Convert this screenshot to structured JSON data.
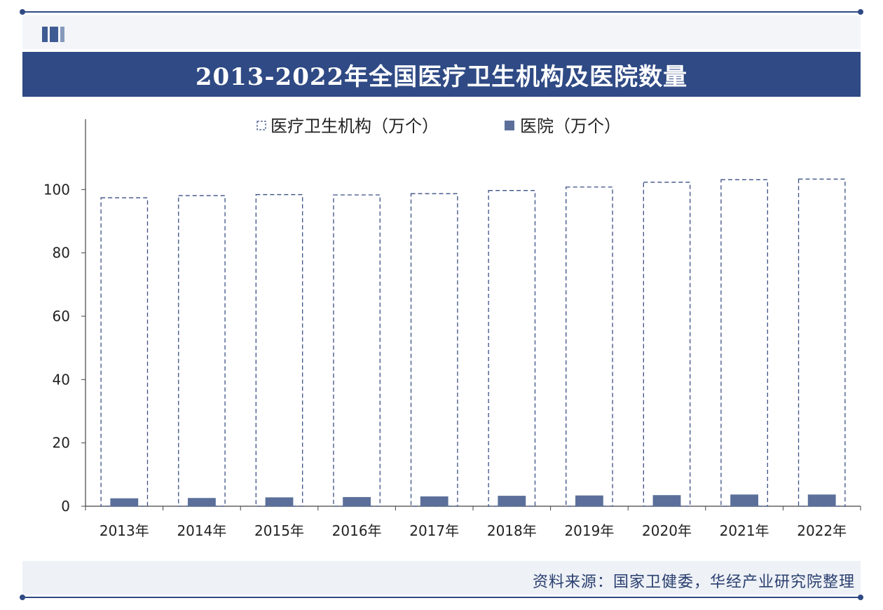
{
  "header": {
    "title": "2013-2022年全国医疗卫生机构及医院数量"
  },
  "footer": {
    "source": "资料来源：国家卫健委，华经产业研究院整理"
  },
  "colors": {
    "brand": "#2f4a84",
    "hospital_bar": "#5b6f9a",
    "institution_outline": "#3b4f86"
  },
  "chart_data": {
    "type": "bar",
    "categories": [
      "2013年",
      "2014年",
      "2015年",
      "2016年",
      "2017年",
      "2018年",
      "2019年",
      "2020年",
      "2021年",
      "2022年"
    ],
    "series": [
      {
        "name": "医疗卫生机构（万个）",
        "values": [
          97.4,
          98.1,
          98.4,
          98.3,
          98.7,
          99.7,
          100.8,
          102.3,
          103.1,
          103.3
        ]
      },
      {
        "name": "医院（万个）",
        "values": [
          2.5,
          2.6,
          2.8,
          2.9,
          3.1,
          3.3,
          3.4,
          3.5,
          3.7,
          3.7
        ]
      }
    ],
    "yticks": [
      0,
      20,
      40,
      60,
      80,
      100
    ],
    "ytick_labels": [
      "0",
      "20",
      "40",
      "60",
      "80",
      "100"
    ],
    "ylim": [
      0,
      120
    ],
    "legend_position": "top",
    "grid": false
  }
}
